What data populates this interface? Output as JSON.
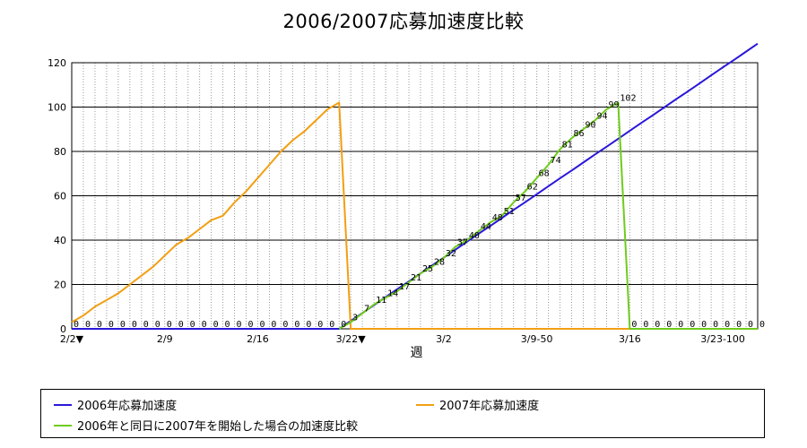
{
  "chart_data": {
    "type": "line",
    "title": "2006/2007応募加速度比較",
    "xlabel": "週",
    "ylabel": "",
    "ylim": [
      0,
      120
    ],
    "yticks": [
      0,
      20,
      40,
      60,
      80,
      100,
      120
    ],
    "x_categories_count": 60,
    "xtick_labels": [
      {
        "index": 0,
        "label": "2/2▼"
      },
      {
        "index": 8,
        "label": "2/9"
      },
      {
        "index": 16,
        "label": "2/16"
      },
      {
        "index": 24,
        "label": "3/22▼"
      },
      {
        "index": 32,
        "label": "3/2"
      },
      {
        "index": 40,
        "label": "3/9-50"
      },
      {
        "index": 48,
        "label": "3/16"
      },
      {
        "index": 56,
        "label": "3/23-100"
      }
    ],
    "grid": true,
    "legend_position": "bottom",
    "series": [
      {
        "name": "2006年応募加速度",
        "color": "#2a17d9",
        "values": [
          0,
          0,
          0,
          0,
          0,
          0,
          0,
          0,
          0,
          0,
          0,
          0,
          0,
          0,
          0,
          0,
          0,
          0,
          0,
          0,
          0,
          0,
          0,
          0,
          3.6,
          7.1,
          10.7,
          14.3,
          17.9,
          21.4,
          25,
          28.6,
          32.1,
          35.7,
          39.3,
          42.9,
          46.4,
          50,
          53.6,
          57.1,
          60.7,
          64.3,
          67.9,
          71.4,
          75,
          78.6,
          82.1,
          85.7,
          89.3,
          92.9,
          96.4,
          100,
          103.6,
          107.1,
          110.7,
          114.3,
          117.9,
          121.4,
          125,
          128.6
        ]
      },
      {
        "name": "2007年応募加速度",
        "color": "#f29f12",
        "values": [
          3,
          6,
          10,
          13,
          16,
          20,
          24,
          28,
          33,
          38,
          41,
          45,
          49,
          51,
          57,
          62,
          68,
          74,
          80,
          85,
          89,
          94,
          99,
          102,
          0,
          0,
          0,
          0,
          0,
          0,
          0,
          0,
          0,
          0,
          0,
          0,
          0,
          0,
          0,
          0,
          0,
          0,
          0,
          0,
          0,
          0,
          0,
          0,
          0,
          0,
          0,
          0,
          0,
          0,
          0,
          0,
          0,
          0,
          0,
          0
        ]
      },
      {
        "name": "2006年と同日に2007年を開始した場合の加速度比較",
        "color": "#6fcc1c",
        "values": [
          null,
          null,
          null,
          null,
          null,
          null,
          null,
          null,
          null,
          null,
          null,
          null,
          null,
          null,
          null,
          null,
          null,
          null,
          null,
          null,
          null,
          null,
          null,
          0,
          3,
          7,
          11,
          14,
          17,
          21,
          25,
          28,
          32,
          37,
          40,
          44,
          48,
          51,
          57,
          62,
          68,
          74,
          81,
          86,
          90,
          94,
          99,
          102,
          0,
          0,
          0,
          0,
          0,
          0,
          0,
          0,
          0,
          0,
          0,
          0
        ]
      }
    ],
    "data_labels": [
      {
        "series": 2,
        "start_index": 0,
        "values": [
          "0",
          "0",
          "0",
          "0",
          "0",
          "0",
          "0",
          "0",
          "0",
          "0",
          "0",
          "0",
          "0",
          "0",
          "0",
          "0",
          "0",
          "0",
          "0",
          "0",
          "0",
          "0",
          "0",
          "0",
          "3",
          "7",
          "11",
          "14",
          "17",
          "21",
          "25",
          "28",
          "32",
          "37",
          "40",
          "44",
          "48",
          "51",
          "57",
          "62",
          "68",
          "74",
          "81",
          "86",
          "90",
          "94",
          "99",
          "102",
          "0",
          "0",
          "0",
          "0",
          "0",
          "0",
          "0",
          "0",
          "0",
          "0",
          "0",
          "0"
        ]
      }
    ]
  }
}
